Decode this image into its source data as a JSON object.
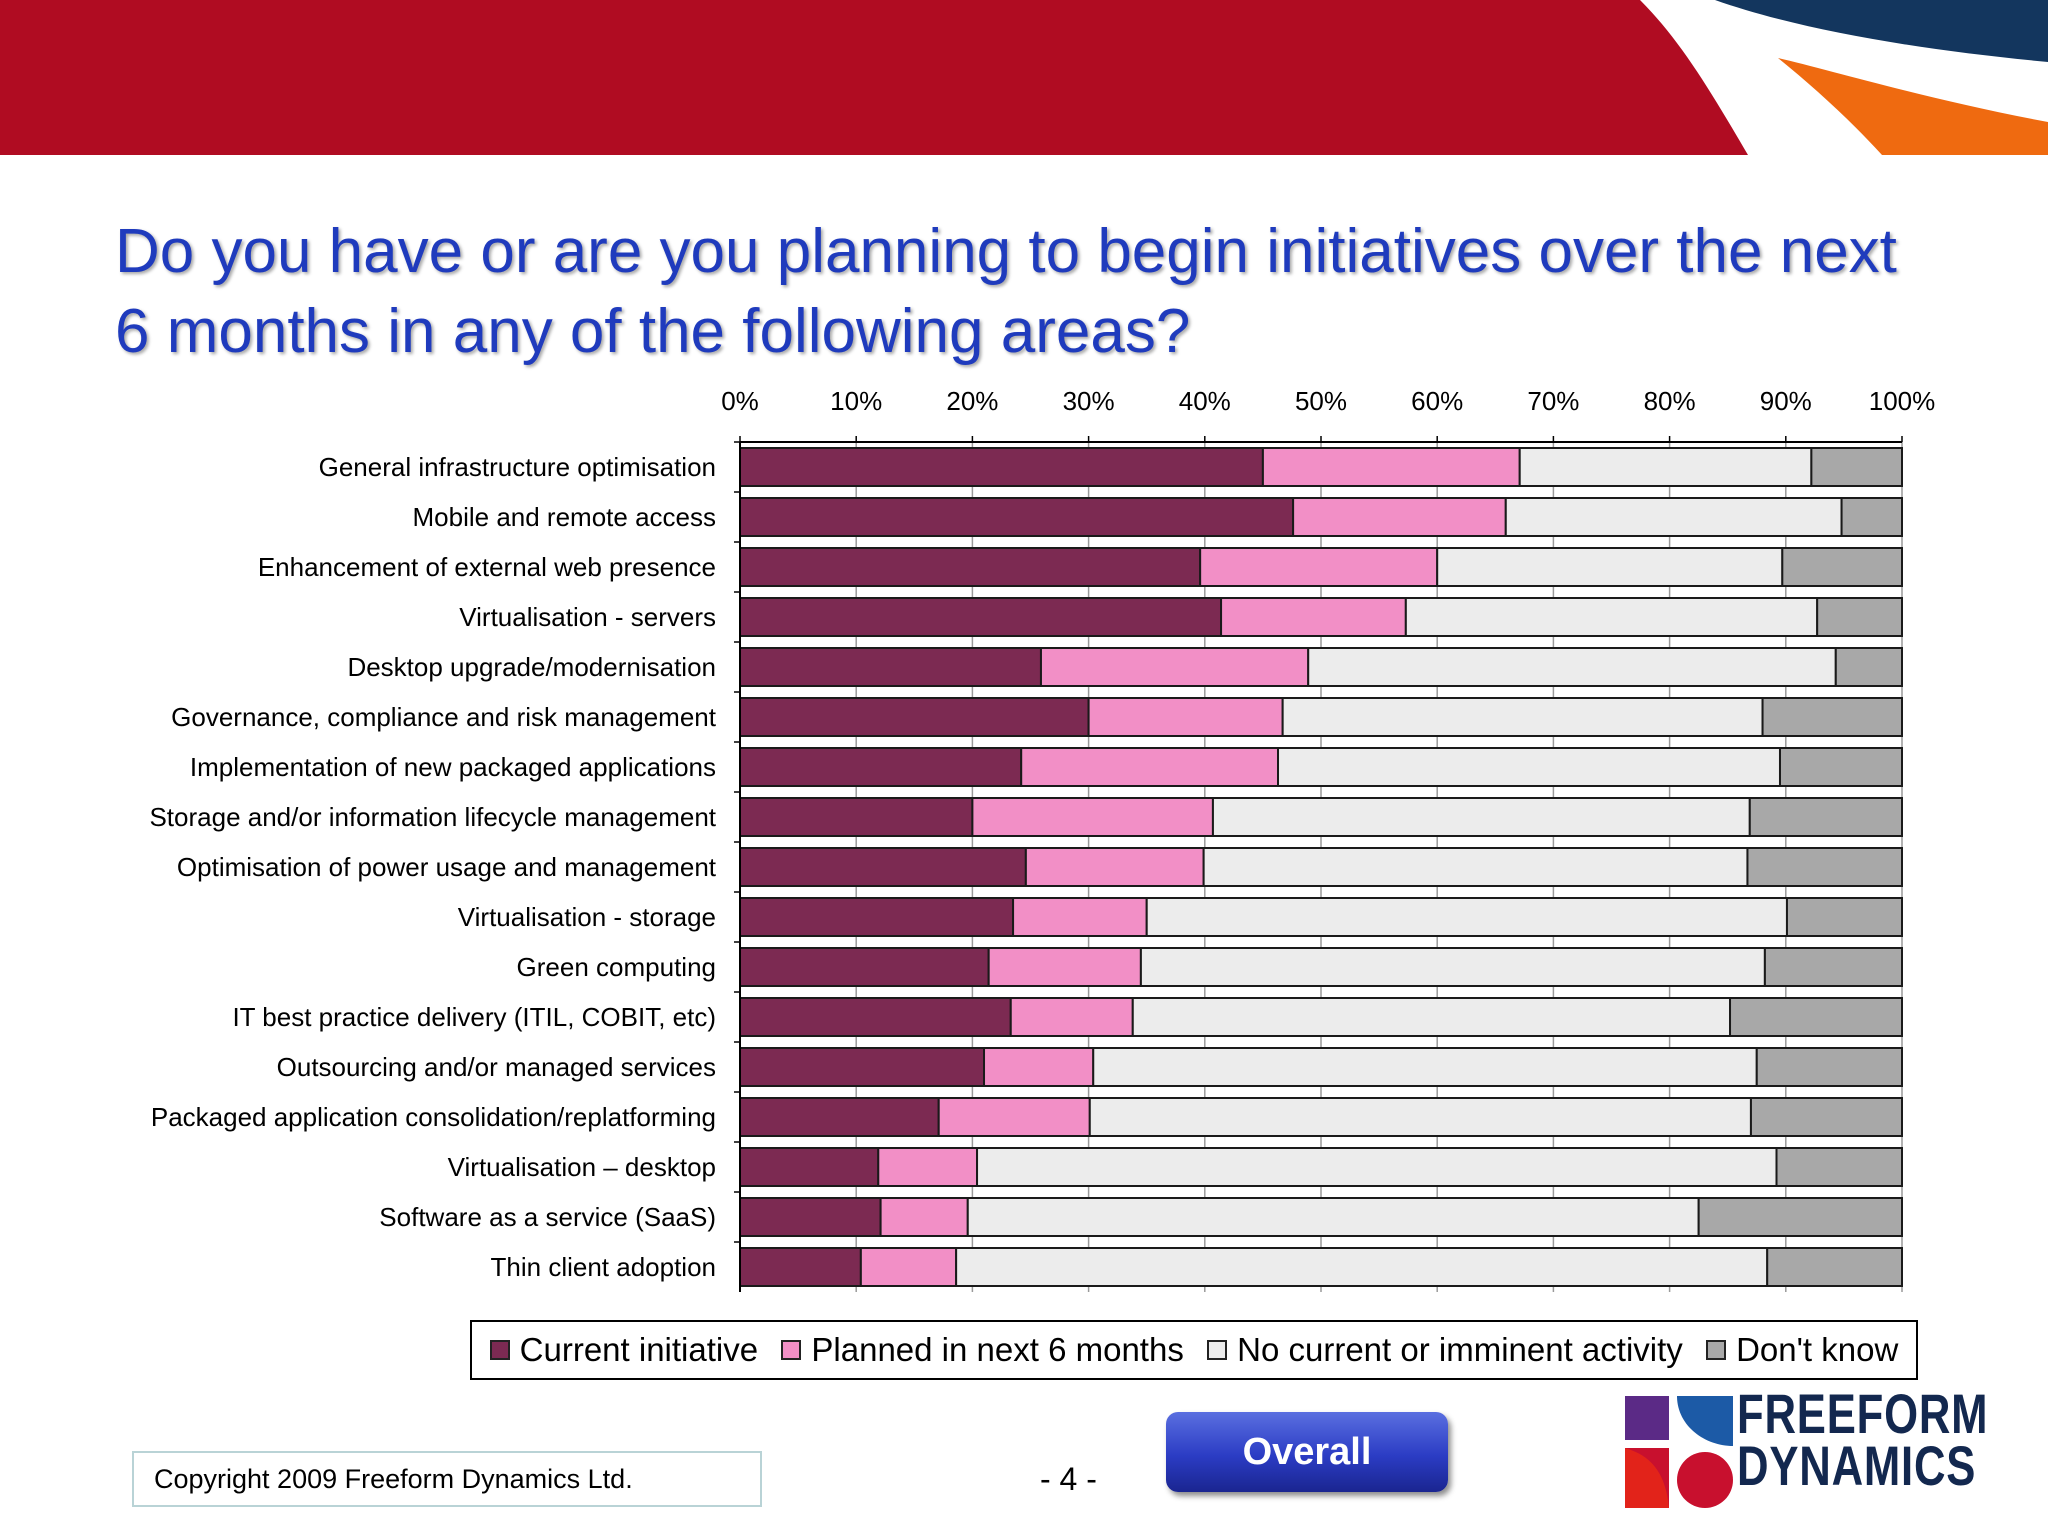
{
  "title": "Do you have or are you planning to begin initiatives over the next 6 months in any of the following areas?",
  "colors": {
    "banner_red": "#b00c22",
    "banner_navy": "#13365e",
    "banner_orange": "#ef6a10",
    "title_blue": "#1f3bbd",
    "current": "#7c2a52",
    "planned": "#f28fc6",
    "none": "#ececec",
    "dont_know": "#a8a8a8"
  },
  "chart_data": {
    "type": "bar",
    "orientation": "horizontal",
    "stacked": true,
    "normalized": true,
    "xlim": [
      0,
      100
    ],
    "x_ticks": [
      "0%",
      "10%",
      "20%",
      "30%",
      "40%",
      "50%",
      "60%",
      "70%",
      "80%",
      "90%",
      "100%"
    ],
    "categories": [
      "General infrastructure optimisation",
      "Mobile and remote access",
      "Enhancement of external web presence",
      "Virtualisation - servers",
      "Desktop upgrade/modernisation",
      "Governance, compliance and risk management",
      "Implementation of new packaged applications",
      "Storage and/or information lifecycle management",
      "Optimisation of power usage and management",
      "Virtualisation - storage",
      "Green computing",
      "IT best practice delivery (ITIL, COBIT, etc)",
      "Outsourcing and/or managed services",
      "Packaged application consolidation/replatforming",
      "Virtualisation – desktop",
      "Software as a service (SaaS)",
      "Thin client adoption"
    ],
    "series": [
      {
        "name": "Current initiative",
        "values": [
          45,
          47.6,
          39.6,
          41.4,
          25.9,
          30,
          24.2,
          20,
          24.6,
          23.5,
          21.4,
          23.3,
          21,
          17.1,
          11.9,
          12.1,
          10.4
        ]
      },
      {
        "name": "Planned in next 6 months",
        "values": [
          22.1,
          18.3,
          20.4,
          15.9,
          23,
          16.7,
          22.1,
          20.7,
          15.3,
          11.5,
          13.1,
          10.5,
          9.4,
          13,
          8.5,
          7.5,
          8.2
        ]
      },
      {
        "name": "No current or imminent activity",
        "values": [
          25.1,
          28.9,
          29.7,
          35.4,
          45.4,
          41.3,
          43.2,
          46.2,
          46.8,
          55.1,
          53.7,
          51.4,
          57.1,
          56.9,
          68.8,
          62.9,
          69.8
        ]
      },
      {
        "name": "Don't know",
        "values": [
          7.8,
          5.2,
          10.3,
          7.3,
          5.7,
          12,
          10.5,
          13.1,
          13.3,
          9.9,
          11.8,
          14.8,
          12.5,
          13,
          10.8,
          17.5,
          11.6
        ]
      }
    ],
    "legend_position": "bottom"
  },
  "footer": {
    "copyright": "Copyright 2009 Freeform Dynamics Ltd.",
    "page_number": "- 4 -",
    "overall_button": "Overall",
    "logo_line1": "FREEFORM",
    "logo_line2": "DYNAMICS"
  }
}
